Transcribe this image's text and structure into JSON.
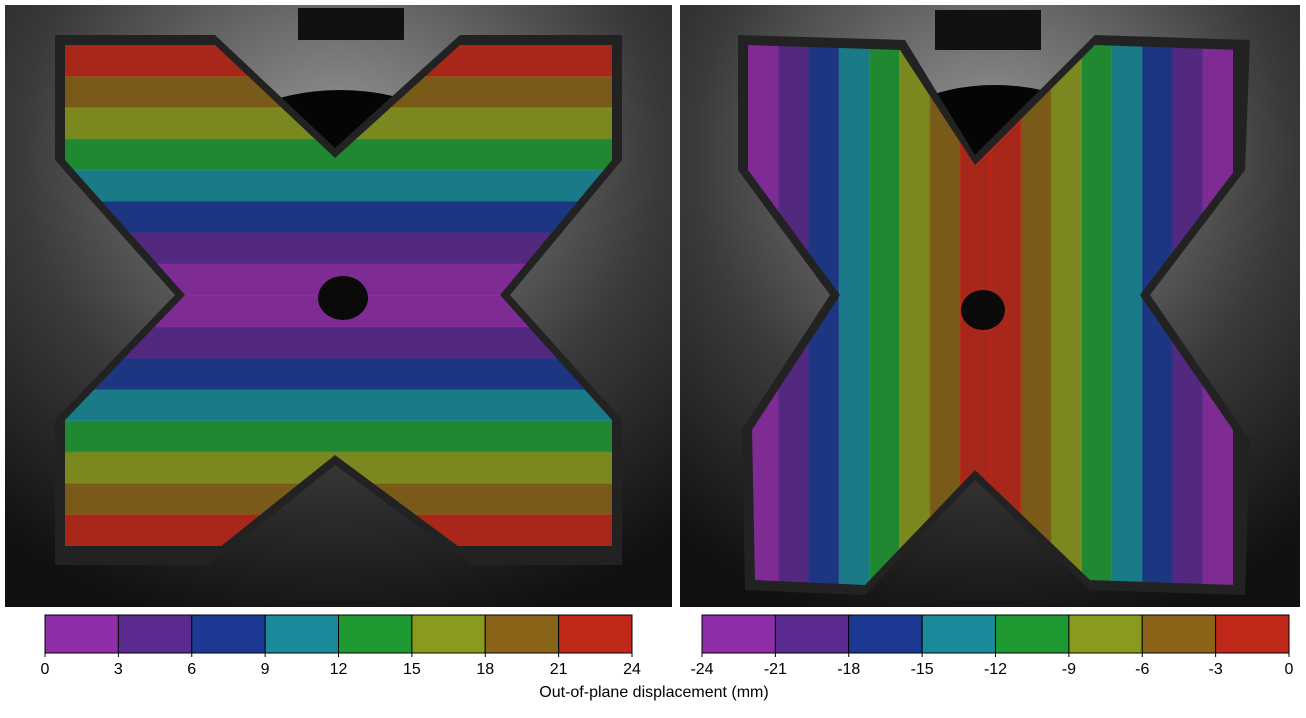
{
  "figure": {
    "colorbars": [
      {
        "ticks": [
          0,
          3,
          6,
          9,
          12,
          15,
          18,
          21,
          24
        ],
        "colors": [
          "#8e2ea8",
          "#5a2a8e",
          "#1c3a93",
          "#1a8a9a",
          "#1f9a33",
          "#8a9a1e",
          "#8a6418",
          "#c0281a"
        ]
      },
      {
        "ticks": [
          -24,
          -21,
          -18,
          -15,
          -12,
          -9,
          -6,
          -3,
          0
        ],
        "colors": [
          "#8e2ea8",
          "#5a2a8e",
          "#1c3a93",
          "#1a8a9a",
          "#1f9a33",
          "#8a9a1e",
          "#8a6418",
          "#c0281a"
        ]
      }
    ],
    "xlabel": "Out-of-plane displacement (mm)"
  }
}
